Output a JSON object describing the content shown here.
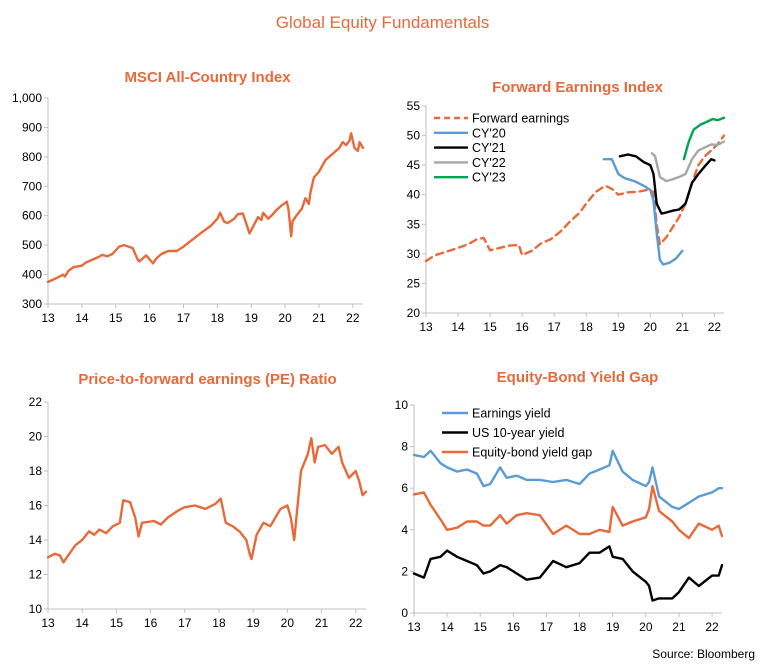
{
  "page": {
    "title": "Global Equity Fundamentals",
    "source": "Source: Bloomberg"
  },
  "colors": {
    "orange": "#E8693A",
    "blue": "#5B9BD5",
    "black": "#000000",
    "gray": "#A6A6A6",
    "green": "#00A650",
    "axis": "#BFBFBF"
  },
  "chart_data": [
    {
      "type": "line",
      "title": "MSCI All-Country Index",
      "xlim": [
        2013,
        2022.3
      ],
      "ylim": [
        300,
        1000
      ],
      "yticks": [
        "1,000",
        "900",
        "800",
        "700",
        "600",
        "500",
        "400",
        "300"
      ],
      "xticks": [
        "13",
        "14",
        "15",
        "16",
        "17",
        "18",
        "19",
        "20",
        "21",
        "22"
      ],
      "series": [
        {
          "color": "#E8693A",
          "x": [
            2013.0,
            2013.25,
            2013.45,
            2013.5,
            2013.6,
            2013.75,
            2014.0,
            2014.1,
            2014.3,
            2014.5,
            2014.6,
            2014.75,
            2014.9,
            2015.1,
            2015.25,
            2015.5,
            2015.65,
            2015.7,
            2015.9,
            2016.1,
            2016.2,
            2016.35,
            2016.55,
            2016.8,
            2017.0,
            2017.5,
            2017.8,
            2018.0,
            2018.08,
            2018.2,
            2018.3,
            2018.5,
            2018.6,
            2018.75,
            2018.85,
            2018.95,
            2019.2,
            2019.3,
            2019.35,
            2019.5,
            2019.6,
            2019.75,
            2019.9,
            2020.05,
            2020.1,
            2020.18,
            2020.22,
            2020.3,
            2020.5,
            2020.6,
            2020.7,
            2020.75,
            2020.85,
            2021.0,
            2021.2,
            2021.3,
            2021.5,
            2021.6,
            2021.7,
            2021.8,
            2021.9,
            2021.95,
            2022.05,
            2022.15,
            2022.2,
            2022.3
          ],
          "values": [
            375,
            388,
            400,
            393,
            412,
            425,
            430,
            440,
            450,
            460,
            467,
            462,
            470,
            495,
            500,
            490,
            450,
            445,
            465,
            438,
            455,
            470,
            480,
            480,
            495,
            540,
            565,
            590,
            610,
            580,
            575,
            590,
            605,
            608,
            575,
            540,
            595,
            585,
            610,
            590,
            600,
            620,
            635,
            648,
            620,
            530,
            580,
            595,
            625,
            660,
            640,
            680,
            730,
            750,
            790,
            800,
            820,
            830,
            850,
            840,
            855,
            880,
            830,
            820,
            850,
            830
          ]
        }
      ]
    },
    {
      "type": "line",
      "title": "Forward Earnings Index",
      "xlim": [
        2013,
        2022.3
      ],
      "ylim": [
        20,
        55
      ],
      "yticks": [
        "55",
        "50",
        "45",
        "40",
        "35",
        "30",
        "25",
        "20"
      ],
      "xticks": [
        "13",
        "14",
        "15",
        "16",
        "17",
        "18",
        "19",
        "20",
        "21",
        "22"
      ],
      "legend": "top-left",
      "series": [
        {
          "name": "Forward earnings",
          "color": "#E8693A",
          "dashed": true,
          "x": [
            2013.0,
            2013.3,
            2013.6,
            2014.0,
            2014.3,
            2014.6,
            2014.8,
            2015.0,
            2015.3,
            2015.6,
            2015.9,
            2016.0,
            2016.3,
            2016.6,
            2016.9,
            2017.2,
            2017.5,
            2017.8,
            2018.0,
            2018.3,
            2018.6,
            2018.8,
            2019.0,
            2019.3,
            2019.6,
            2019.9,
            2020.1,
            2020.2,
            2020.3,
            2020.5,
            2020.7,
            2020.9,
            2021.1,
            2021.3,
            2021.5,
            2021.7,
            2021.9,
            2022.1,
            2022.3
          ],
          "values": [
            28.8,
            29.8,
            30.3,
            31.0,
            31.6,
            32.5,
            32.7,
            30.6,
            31.0,
            31.4,
            31.5,
            29.8,
            30.5,
            31.8,
            32.5,
            33.8,
            35.5,
            37.0,
            38.5,
            40.5,
            41.5,
            41.0,
            40.0,
            40.4,
            40.5,
            40.8,
            40.5,
            35.0,
            31.6,
            32.8,
            34.5,
            36.2,
            38.5,
            42.0,
            45.0,
            46.5,
            47.5,
            48.5,
            50.0
          ]
        },
        {
          "name": "CY'20",
          "color": "#5B9BD5",
          "dashed": false,
          "x": [
            2018.55,
            2018.8,
            2019.0,
            2019.2,
            2019.5,
            2019.8,
            2020.0,
            2020.1,
            2020.2,
            2020.3,
            2020.4,
            2020.6,
            2020.8,
            2021.0
          ],
          "values": [
            46.0,
            46.0,
            43.5,
            42.8,
            42.3,
            41.5,
            40.8,
            39.0,
            33.5,
            29.0,
            28.2,
            28.5,
            29.2,
            30.5
          ]
        },
        {
          "name": "CY'21",
          "color": "#000000",
          "dashed": false,
          "x": [
            2019.05,
            2019.3,
            2019.55,
            2019.8,
            2020.0,
            2020.1,
            2020.2,
            2020.35,
            2020.5,
            2020.7,
            2020.9,
            2021.1,
            2021.3,
            2021.5,
            2021.7,
            2021.9,
            2022.0
          ],
          "values": [
            46.5,
            46.8,
            46.5,
            45.5,
            45.0,
            43.5,
            38.5,
            36.8,
            37.0,
            37.3,
            37.5,
            38.5,
            42.0,
            43.5,
            44.8,
            46.0,
            45.8
          ]
        },
        {
          "name": "CY'22",
          "color": "#A6A6A6",
          "dashed": false,
          "x": [
            2020.05,
            2020.15,
            2020.3,
            2020.5,
            2020.7,
            2020.9,
            2021.1,
            2021.3,
            2021.5,
            2021.7,
            2021.9,
            2022.1,
            2022.3
          ],
          "values": [
            47.0,
            46.5,
            43.0,
            42.3,
            42.6,
            43.0,
            43.5,
            46.0,
            47.5,
            48.0,
            48.5,
            48.4,
            49.0
          ]
        },
        {
          "name": "CY'23",
          "color": "#00A650",
          "dashed": false,
          "x": [
            2021.05,
            2021.2,
            2021.35,
            2021.55,
            2021.75,
            2021.95,
            2022.1,
            2022.3
          ],
          "values": [
            46.0,
            49.0,
            51.0,
            51.8,
            52.3,
            52.8,
            52.6,
            53.0
          ]
        }
      ]
    },
    {
      "type": "line",
      "title": "Price-to-forward earnings (PE) Ratio",
      "xlim": [
        2013,
        2022.3
      ],
      "ylim": [
        10,
        22
      ],
      "yticks": [
        "22",
        "20",
        "18",
        "16",
        "14",
        "12",
        "10"
      ],
      "xticks": [
        "13",
        "14",
        "15",
        "16",
        "17",
        "18",
        "19",
        "20",
        "21",
        "22"
      ],
      "series": [
        {
          "color": "#E8693A",
          "x": [
            2013.0,
            2013.2,
            2013.35,
            2013.45,
            2013.55,
            2013.8,
            2014.0,
            2014.2,
            2014.35,
            2014.5,
            2014.7,
            2014.9,
            2015.1,
            2015.2,
            2015.4,
            2015.55,
            2015.65,
            2015.75,
            2016.1,
            2016.3,
            2016.5,
            2016.8,
            2017.0,
            2017.3,
            2017.6,
            2017.9,
            2018.05,
            2018.2,
            2018.4,
            2018.6,
            2018.8,
            2018.9,
            2018.95,
            2019.1,
            2019.3,
            2019.5,
            2019.8,
            2020.0,
            2020.1,
            2020.2,
            2020.4,
            2020.6,
            2020.7,
            2020.8,
            2020.9,
            2021.1,
            2021.3,
            2021.5,
            2021.6,
            2021.8,
            2022.0,
            2022.1,
            2022.2,
            2022.3
          ],
          "values": [
            13.0,
            13.2,
            13.1,
            12.7,
            13.0,
            13.7,
            14.0,
            14.5,
            14.3,
            14.6,
            14.4,
            14.8,
            15.0,
            16.3,
            16.2,
            15.3,
            14.2,
            15.0,
            15.1,
            14.9,
            15.3,
            15.7,
            15.9,
            16.0,
            15.8,
            16.1,
            16.4,
            15.0,
            14.8,
            14.5,
            14.0,
            13.2,
            12.9,
            14.3,
            15.0,
            14.8,
            15.8,
            16.0,
            15.3,
            14.0,
            18.0,
            19.0,
            19.9,
            18.5,
            19.4,
            19.5,
            19.0,
            19.4,
            18.5,
            17.6,
            18.0,
            17.4,
            16.6,
            16.8
          ]
        }
      ]
    },
    {
      "type": "line",
      "title": "Equity-Bond Yield Gap",
      "xlim": [
        2013,
        2022.3
      ],
      "ylim": [
        0,
        10
      ],
      "yticks": [
        "10",
        "8",
        "6",
        "4",
        "2",
        "0"
      ],
      "xticks": [
        "13",
        "14",
        "15",
        "16",
        "17",
        "18",
        "19",
        "20",
        "21",
        "22"
      ],
      "legend": "top-left",
      "series": [
        {
          "name": "Earnings yield",
          "color": "#5B9BD5",
          "dashed": false,
          "x": [
            2013.0,
            2013.3,
            2013.5,
            2013.8,
            2014.0,
            2014.3,
            2014.6,
            2014.9,
            2015.1,
            2015.3,
            2015.6,
            2015.8,
            2016.1,
            2016.4,
            2016.8,
            2017.2,
            2017.6,
            2018.0,
            2018.3,
            2018.6,
            2018.9,
            2019.0,
            2019.3,
            2019.6,
            2020.0,
            2020.1,
            2020.2,
            2020.4,
            2020.8,
            2021.0,
            2021.3,
            2021.6,
            2022.0,
            2022.2,
            2022.3
          ],
          "values": [
            7.6,
            7.5,
            7.8,
            7.2,
            7.0,
            6.8,
            6.9,
            6.7,
            6.1,
            6.2,
            7.0,
            6.5,
            6.6,
            6.4,
            6.4,
            6.3,
            6.4,
            6.2,
            6.7,
            6.9,
            7.1,
            7.8,
            6.8,
            6.4,
            6.1,
            6.3,
            7.0,
            5.6,
            5.1,
            5.0,
            5.3,
            5.6,
            5.8,
            6.0,
            6.0
          ]
        },
        {
          "name": "US 10-year yield",
          "color": "#000000",
          "dashed": false,
          "x": [
            2013.0,
            2013.3,
            2013.5,
            2013.8,
            2014.0,
            2014.3,
            2014.6,
            2014.9,
            2015.1,
            2015.3,
            2015.6,
            2015.8,
            2016.1,
            2016.4,
            2016.8,
            2017.2,
            2017.6,
            2018.0,
            2018.3,
            2018.6,
            2018.9,
            2019.0,
            2019.3,
            2019.6,
            2020.0,
            2020.1,
            2020.2,
            2020.4,
            2020.8,
            2021.0,
            2021.3,
            2021.6,
            2022.0,
            2022.2,
            2022.3
          ],
          "values": [
            1.9,
            1.7,
            2.6,
            2.7,
            3.0,
            2.7,
            2.5,
            2.3,
            1.9,
            2.0,
            2.3,
            2.2,
            1.9,
            1.6,
            1.7,
            2.5,
            2.2,
            2.4,
            2.9,
            2.9,
            3.2,
            2.7,
            2.6,
            2.0,
            1.5,
            1.3,
            0.6,
            0.7,
            0.7,
            1.0,
            1.7,
            1.3,
            1.8,
            1.8,
            2.3
          ]
        },
        {
          "name": "Equity-bond yield gap",
          "color": "#E8693A",
          "dashed": false,
          "x": [
            2013.0,
            2013.3,
            2013.5,
            2013.8,
            2014.0,
            2014.3,
            2014.6,
            2014.9,
            2015.1,
            2015.3,
            2015.6,
            2015.8,
            2016.1,
            2016.4,
            2016.8,
            2017.2,
            2017.6,
            2018.0,
            2018.3,
            2018.6,
            2018.9,
            2019.0,
            2019.3,
            2019.6,
            2020.0,
            2020.1,
            2020.2,
            2020.4,
            2020.8,
            2021.0,
            2021.3,
            2021.6,
            2022.0,
            2022.2,
            2022.3
          ],
          "values": [
            5.7,
            5.8,
            5.2,
            4.5,
            4.0,
            4.1,
            4.4,
            4.4,
            4.2,
            4.2,
            4.7,
            4.3,
            4.7,
            4.8,
            4.7,
            3.8,
            4.2,
            3.8,
            3.8,
            4.0,
            3.9,
            5.1,
            4.2,
            4.4,
            4.6,
            5.0,
            6.1,
            4.9,
            4.4,
            4.0,
            3.6,
            4.3,
            4.0,
            4.2,
            3.7
          ]
        }
      ]
    }
  ]
}
